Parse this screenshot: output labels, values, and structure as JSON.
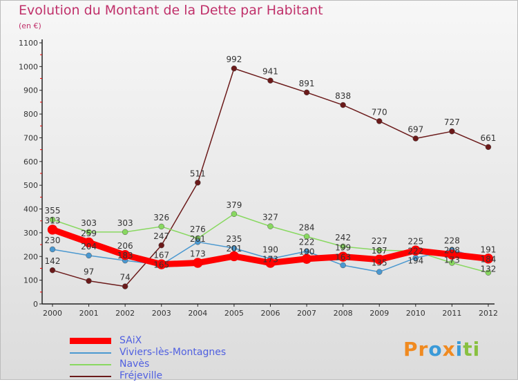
{
  "chart_data": {
    "type": "line",
    "title": "Evolution du Montant de la Dette par Habitant",
    "ylabel": "(en €)",
    "x": [
      "2000",
      "2001",
      "2002",
      "2003",
      "2004",
      "2005",
      "2006",
      "2007",
      "2008",
      "2009",
      "2010",
      "2011",
      "2012"
    ],
    "ylim": [
      0,
      1100
    ],
    "yticks": [
      0,
      100,
      200,
      300,
      400,
      500,
      600,
      700,
      800,
      900,
      1000,
      1100
    ],
    "series": [
      {
        "name": "SAiX",
        "color": "#ff0000",
        "values": [
          313,
          259,
          206,
          167,
          173,
          201,
          173,
          190,
          199,
          187,
          225,
          208,
          191
        ]
      },
      {
        "name": "Viviers-lès-Montagnes",
        "color": "#4a98d0",
        "values": [
          230,
          204,
          183,
          165,
          261,
          235,
          190,
          222,
          163,
          135,
          194,
          228,
          184
        ]
      },
      {
        "name": "Navès",
        "color": "#88d860",
        "values": [
          355,
          303,
          303,
          326,
          276,
          379,
          327,
          284,
          242,
          227,
          222,
          173,
          132
        ]
      },
      {
        "name": "Fréjeville",
        "color": "#6b1a1a",
        "values": [
          142,
          97,
          74,
          247,
          511,
          992,
          941,
          891,
          838,
          770,
          697,
          727,
          661
        ]
      }
    ],
    "legend": "bottom-left"
  },
  "logo": "Proxiti"
}
